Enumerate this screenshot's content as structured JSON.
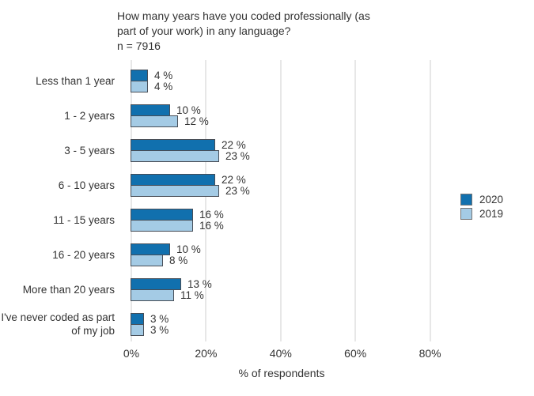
{
  "title": {
    "lines": [
      "How many years have you coded professionally (as",
      "part of your work) in any language?"
    ],
    "sample_size": "n = 7916"
  },
  "chart_data": {
    "type": "bar",
    "orientation": "horizontal",
    "title": "How many years have you coded professionally (as part of your work) in any language?",
    "subtitle": "n = 7916",
    "categories": [
      "Less than 1 year",
      "1 - 2 years",
      "3 - 5 years",
      "6 - 10 years",
      "11 - 15 years",
      "16 - 20 years",
      "More than 20 years",
      "I've never coded as part of my job"
    ],
    "series": [
      {
        "name": "2020",
        "color": "#1170ae",
        "values": [
          4,
          10,
          22,
          22,
          16,
          10,
          13,
          3
        ]
      },
      {
        "name": "2019",
        "color": "#a4cbe5",
        "values": [
          4,
          12,
          23,
          23,
          16,
          8,
          11,
          3
        ]
      }
    ],
    "value_suffix": " %",
    "xlabel": "% of respondents",
    "x_ticks": [
      {
        "value": 0,
        "label": "0%"
      },
      {
        "value": 20,
        "label": "20%"
      },
      {
        "value": 40,
        "label": "40%"
      },
      {
        "value": 60,
        "label": "60%"
      },
      {
        "value": 80,
        "label": "80%"
      }
    ],
    "xlim": [
      0,
      90
    ],
    "grid": "vertical",
    "legend_position": "right",
    "colors": {
      "bar_border": "#474d56",
      "grid": "#e7e7e7",
      "text": "#333333",
      "background": "#ffffff"
    }
  }
}
